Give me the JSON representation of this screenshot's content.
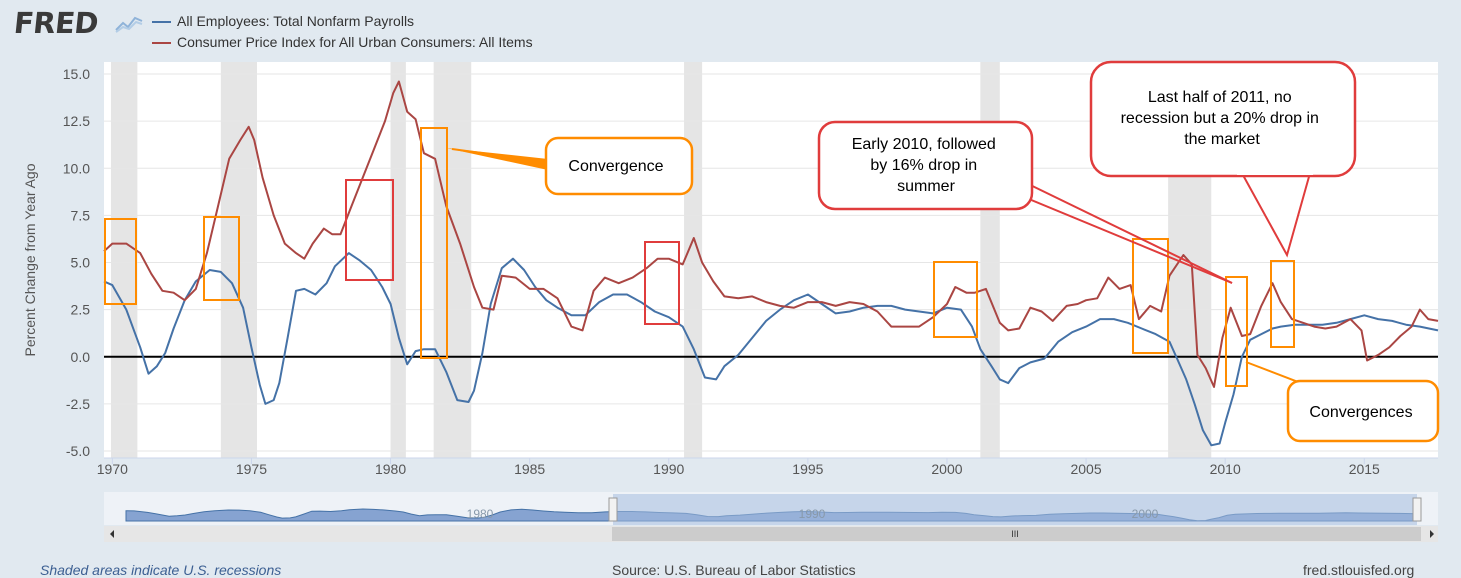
{
  "header": {
    "logo_text": "FRED",
    "logo_mark": "trend-line-icon"
  },
  "legend": [
    {
      "name": "All Employees: Total Nonfarm Payrolls",
      "color": "#4572a7"
    },
    {
      "name": "Consumer Price Index for All Urban Consumers: All Items",
      "color": "#aa4643"
    }
  ],
  "chart_data": {
    "type": "line",
    "ylabel": "Percent Change from Year Ago",
    "xlabel": "",
    "xlim": [
      1969.7,
      2017.65
    ],
    "ylim": [
      -5.0,
      15.0
    ],
    "x_ticks": [
      "1970",
      "1975",
      "1980",
      "1985",
      "1990",
      "1995",
      "2000",
      "2005",
      "2010",
      "2015"
    ],
    "y_ticks": [
      "15.0",
      "12.5",
      "10.0",
      "7.5",
      "5.0",
      "2.5",
      "0.0",
      "-2.5",
      "-5.0"
    ],
    "recessions": [
      [
        1969.95,
        1970.9
      ],
      [
        1973.9,
        1975.2
      ],
      [
        1980.0,
        1980.55
      ],
      [
        1981.55,
        1982.9
      ],
      [
        1990.55,
        1991.2
      ],
      [
        2001.2,
        2001.9
      ],
      [
        2007.95,
        2009.5
      ]
    ],
    "series": [
      {
        "name": "All Employees: Total Nonfarm Payrolls",
        "color": "#4572a7",
        "x": [
          1969.7,
          1970.0,
          1970.5,
          1970.8,
          1971.0,
          1971.3,
          1971.6,
          1971.9,
          1972.2,
          1972.6,
          1973.0,
          1973.5,
          1973.9,
          1974.3,
          1974.7,
          1975.0,
          1975.3,
          1975.5,
          1975.8,
          1976.0,
          1976.3,
          1976.6,
          1976.9,
          1977.3,
          1977.7,
          1978.0,
          1978.5,
          1978.9,
          1979.3,
          1979.7,
          1980.0,
          1980.3,
          1980.6,
          1980.9,
          1981.2,
          1981.6,
          1982.0,
          1982.4,
          1982.8,
          1983.0,
          1983.3,
          1983.6,
          1984.0,
          1984.4,
          1984.8,
          1985.2,
          1985.6,
          1986.0,
          1986.5,
          1987.0,
          1987.5,
          1988.0,
          1988.5,
          1989.0,
          1989.5,
          1990.0,
          1990.5,
          1990.9,
          1991.3,
          1991.7,
          1992.0,
          1992.5,
          1993.0,
          1993.5,
          1994.0,
          1994.5,
          1995.0,
          1995.5,
          1996.0,
          1996.5,
          1997.0,
          1997.5,
          1998.0,
          1998.5,
          1999.0,
          1999.5,
          2000.0,
          2000.5,
          2000.9,
          2001.2,
          2001.6,
          2001.9,
          2002.2,
          2002.6,
          2003.0,
          2003.5,
          2004.0,
          2004.5,
          2005.0,
          2005.5,
          2006.0,
          2006.5,
          2007.0,
          2007.5,
          2008.0,
          2008.3,
          2008.6,
          2008.9,
          2009.2,
          2009.5,
          2009.8,
          2010.0,
          2010.3,
          2010.6,
          2010.9,
          2011.3,
          2011.7,
          2012.0,
          2012.5,
          2013.0,
          2013.5,
          2014.0,
          2014.5,
          2015.0,
          2015.5,
          2016.0,
          2016.5,
          2017.0,
          2017.65
        ],
        "y": [
          4.0,
          3.8,
          2.5,
          1.3,
          0.5,
          -0.9,
          -0.5,
          0.2,
          1.5,
          3.0,
          4.0,
          4.6,
          4.5,
          3.9,
          2.6,
          0.5,
          -1.5,
          -2.5,
          -2.3,
          -1.4,
          1.0,
          3.5,
          3.6,
          3.3,
          3.9,
          4.8,
          5.5,
          5.1,
          4.6,
          3.7,
          2.8,
          1.0,
          -0.4,
          0.3,
          0.4,
          0.4,
          -0.8,
          -2.3,
          -2.4,
          -1.8,
          0.2,
          2.8,
          4.7,
          5.2,
          4.6,
          3.7,
          3.0,
          2.6,
          2.2,
          2.2,
          2.9,
          3.3,
          3.3,
          2.9,
          2.4,
          2.1,
          1.6,
          0.4,
          -1.1,
          -1.2,
          -0.5,
          0.1,
          1.0,
          1.9,
          2.5,
          3.0,
          3.3,
          2.8,
          2.3,
          2.4,
          2.6,
          2.7,
          2.7,
          2.5,
          2.4,
          2.3,
          2.6,
          2.5,
          1.6,
          0.4,
          -0.5,
          -1.2,
          -1.4,
          -0.6,
          -0.3,
          -0.1,
          0.8,
          1.3,
          1.6,
          2.0,
          2.0,
          1.8,
          1.5,
          1.2,
          0.8,
          -0.2,
          -1.2,
          -2.5,
          -3.9,
          -4.7,
          -4.6,
          -3.5,
          -2.0,
          0.0,
          0.9,
          1.2,
          1.5,
          1.6,
          1.7,
          1.7,
          1.7,
          1.8,
          2.0,
          2.2,
          2.0,
          1.9,
          1.7,
          1.6,
          1.4
        ]
      },
      {
        "name": "Consumer Price Index for All Urban Consumers: All Items",
        "color": "#aa4643",
        "x": [
          1969.7,
          1970.0,
          1970.5,
          1971.0,
          1971.4,
          1971.8,
          1972.2,
          1972.6,
          1973.0,
          1973.4,
          1973.8,
          1974.2,
          1974.6,
          1974.9,
          1975.1,
          1975.4,
          1975.8,
          1976.2,
          1976.6,
          1976.9,
          1977.2,
          1977.6,
          1977.9,
          1978.2,
          1978.6,
          1979.0,
          1979.4,
          1979.8,
          1980.1,
          1980.3,
          1980.6,
          1980.9,
          1981.2,
          1981.6,
          1982.0,
          1982.5,
          1983.0,
          1983.3,
          1983.7,
          1984.0,
          1984.5,
          1985.0,
          1985.5,
          1986.0,
          1986.5,
          1986.9,
          1987.3,
          1987.7,
          1988.2,
          1988.7,
          1989.2,
          1989.6,
          1990.0,
          1990.5,
          1990.9,
          1991.2,
          1991.6,
          1992.0,
          1992.5,
          1993.0,
          1993.5,
          1994.0,
          1994.5,
          1995.0,
          1995.5,
          1996.0,
          1996.5,
          1997.0,
          1997.5,
          1998.0,
          1998.5,
          1999.0,
          1999.5,
          2000.0,
          2000.3,
          2000.7,
          2001.0,
          2001.4,
          2001.9,
          2002.2,
          2002.6,
          2003.0,
          2003.4,
          2003.8,
          2004.3,
          2004.7,
          2005.0,
          2005.4,
          2005.8,
          2006.2,
          2006.6,
          2006.9,
          2007.3,
          2007.7,
          2008.0,
          2008.5,
          2008.8,
          2009.0,
          2009.3,
          2009.6,
          2009.9,
          2010.2,
          2010.6,
          2010.9,
          2011.3,
          2011.7,
          2012.0,
          2012.4,
          2012.8,
          2013.2,
          2013.6,
          2014.0,
          2014.5,
          2014.9,
          2015.1,
          2015.5,
          2015.9,
          2016.3,
          2016.7,
          2017.0,
          2017.3,
          2017.65
        ],
        "y": [
          5.6,
          6.0,
          6.0,
          5.5,
          4.4,
          3.5,
          3.4,
          3.0,
          3.6,
          5.5,
          8.0,
          10.5,
          11.5,
          12.2,
          11.5,
          9.5,
          7.5,
          6.0,
          5.5,
          5.2,
          6.0,
          6.8,
          6.5,
          6.5,
          8.0,
          9.5,
          11.0,
          12.5,
          14.0,
          14.6,
          13.0,
          12.6,
          10.8,
          10.5,
          8.0,
          6.0,
          3.7,
          2.6,
          2.5,
          4.3,
          4.2,
          3.6,
          3.6,
          3.1,
          1.6,
          1.4,
          3.5,
          4.2,
          3.9,
          4.2,
          4.7,
          5.2,
          5.2,
          4.9,
          6.3,
          5.0,
          4.0,
          3.2,
          3.1,
          3.2,
          2.9,
          2.7,
          2.6,
          2.9,
          2.9,
          2.7,
          2.9,
          2.8,
          2.4,
          1.6,
          1.6,
          1.6,
          2.1,
          2.8,
          3.7,
          3.4,
          3.4,
          3.6,
          1.8,
          1.4,
          1.5,
          2.6,
          2.4,
          1.9,
          2.7,
          2.8,
          3.0,
          3.1,
          4.2,
          3.6,
          3.8,
          2.0,
          2.7,
          2.4,
          4.3,
          5.4,
          4.9,
          0.1,
          -0.6,
          -1.6,
          1.0,
          2.6,
          1.1,
          1.2,
          2.7,
          3.9,
          2.9,
          2.0,
          1.8,
          1.6,
          1.5,
          1.6,
          2.0,
          1.4,
          -0.2,
          0.1,
          0.5,
          1.1,
          1.6,
          2.5,
          2.0,
          1.9
        ]
      }
    ],
    "annotations": [
      {
        "text": "Convergence"
      },
      {
        "text": "Early 2010, followed by 16% drop in summer"
      },
      {
        "text": "Last half of 2011, no recession but a 20% drop in the market"
      },
      {
        "text": "Convergences"
      }
    ],
    "navigator_ticks": [
      "1980",
      "1990",
      "2000"
    ],
    "scroll_indicator": "III"
  },
  "footer": {
    "left": "Shaded areas indicate U.S. recessions",
    "mid": "Source: U.S. Bureau of Labor Statistics",
    "right": "fred.stlouisfed.org"
  }
}
